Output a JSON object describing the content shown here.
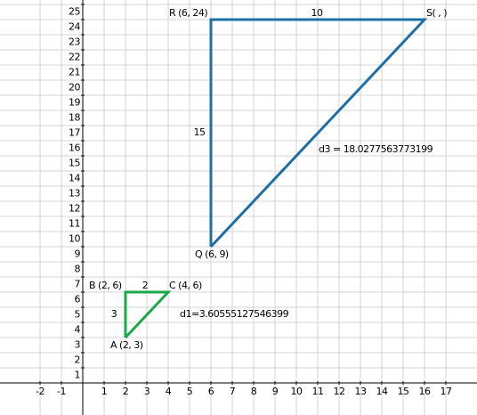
{
  "chart_data": {
    "type": "line",
    "xlim": [
      -3.875,
      18.458
    ],
    "ylim": [
      -2.118,
      25.294
    ],
    "xticks": [
      -2,
      -1,
      1,
      2,
      3,
      4,
      5,
      6,
      7,
      8,
      9,
      10,
      11,
      12,
      13,
      14,
      15,
      16,
      17
    ],
    "yticks": [
      1,
      2,
      3,
      4,
      5,
      6,
      7,
      8,
      9,
      10,
      11,
      12,
      13,
      14,
      15,
      16,
      17,
      18,
      19,
      20,
      21,
      22,
      23,
      24,
      25
    ],
    "grid": true,
    "series": [
      {
        "color": "#19a84a",
        "x": [
          2,
          2,
          4,
          2
        ],
        "values": [
          3,
          6,
          6,
          3
        ]
      },
      {
        "color": "#1f6ea8",
        "x": [
          6,
          6,
          16,
          6
        ],
        "values": [
          9,
          24,
          24,
          9
        ]
      }
    ],
    "annotations": [
      "B (2, 6)",
      "2",
      "C (4, 6)",
      "3",
      "d1=3.60555127546399",
      "A (2, 3)",
      "R (6, 24)",
      "10",
      "S( , )",
      "15",
      "d3 = 18.0277563773199",
      "Q (6, 9)"
    ]
  }
}
